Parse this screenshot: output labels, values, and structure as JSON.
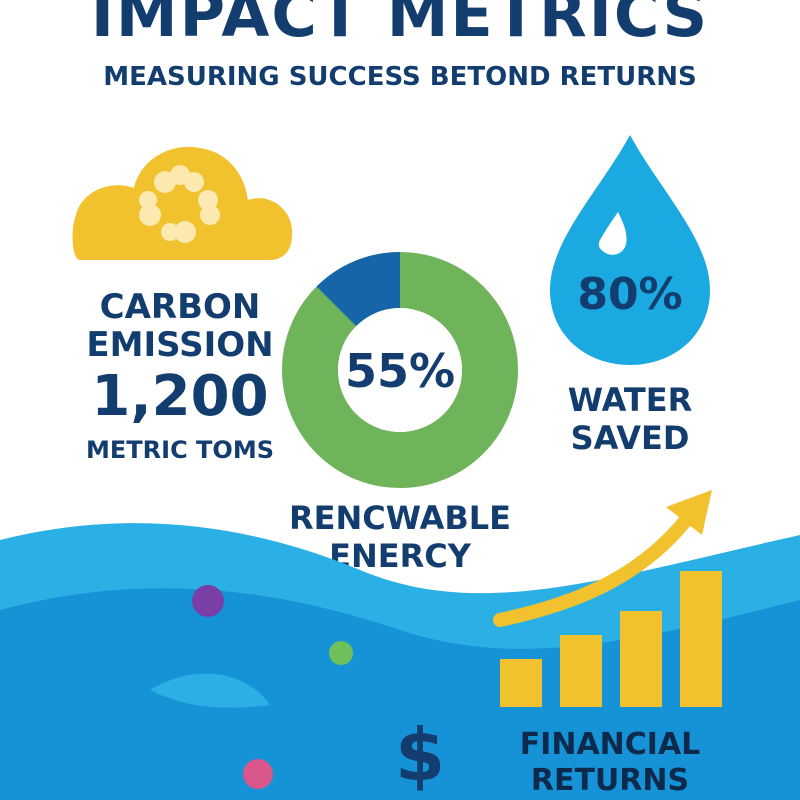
{
  "header": {
    "title": "IMPACT METRICS",
    "subtitle": "MEASURING SUCCESS BETOND  RETURNS"
  },
  "carbon": {
    "icon": "recycle-cloud-icon",
    "label_line1": "CARBON",
    "label_line2": "EMISSION",
    "value": "1,200",
    "unit": "METRIC TOMS",
    "color": "#f2c12e"
  },
  "renewable": {
    "percent_text": "55%",
    "label_line1": "RENCWABLE",
    "label_line2": "ENERCY",
    "ring_color": "#6fb35a",
    "segment_color": "#1565a8",
    "highlight_fraction": 0.125
  },
  "water": {
    "icon": "water-drop-icon",
    "percent_text": "80%",
    "label_line1": "WATER",
    "label_line2": "SAVED",
    "color": "#1aa9e0"
  },
  "financial": {
    "icon": "growth-bars-icon",
    "currency_icon": "dollar-icon",
    "currency_symbol": "$",
    "label_line1": "FINANCIAL",
    "label_line2": "RETURNS",
    "bar_levels": [
      0.3,
      0.45,
      0.6,
      0.85
    ],
    "color": "#f2c12e"
  },
  "colors": {
    "navy": "#123d6e",
    "wave_light": "#2bb0e6",
    "wave_dark": "#1692d6"
  }
}
